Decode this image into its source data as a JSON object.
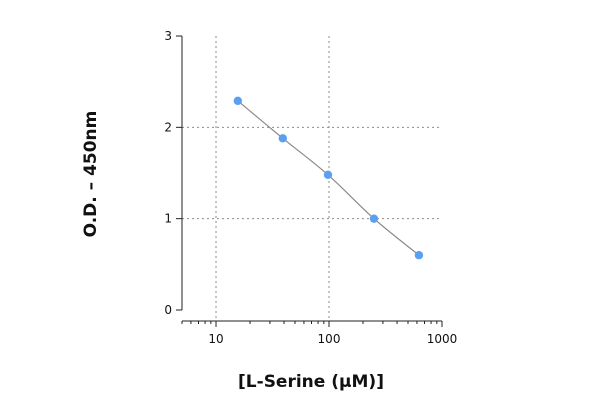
{
  "chart_data": {
    "type": "scatter",
    "title": "",
    "xlabel": "[L-Serine (µM)]",
    "ylabel": "O.D. – 450nm",
    "x_scale": "log",
    "xlim": [
      5,
      1000
    ],
    "ylim": [
      0,
      3
    ],
    "x_ticks": [
      10,
      100,
      1000
    ],
    "x_tick_labels": [
      "10",
      "100",
      "1000"
    ],
    "y_ticks": [
      0,
      1,
      2,
      3
    ],
    "y_tick_labels": [
      "0",
      "1",
      "2",
      "3"
    ],
    "grid": true,
    "legend": "none",
    "series": [
      {
        "x": [
          15.6,
          39,
          98,
          250,
          625
        ],
        "y": [
          2.29,
          1.88,
          1.48,
          1.0,
          0.6
        ],
        "marker_color": "#5a9ff0",
        "line_color": "#8a8a8a",
        "fit_curve": true
      }
    ]
  }
}
